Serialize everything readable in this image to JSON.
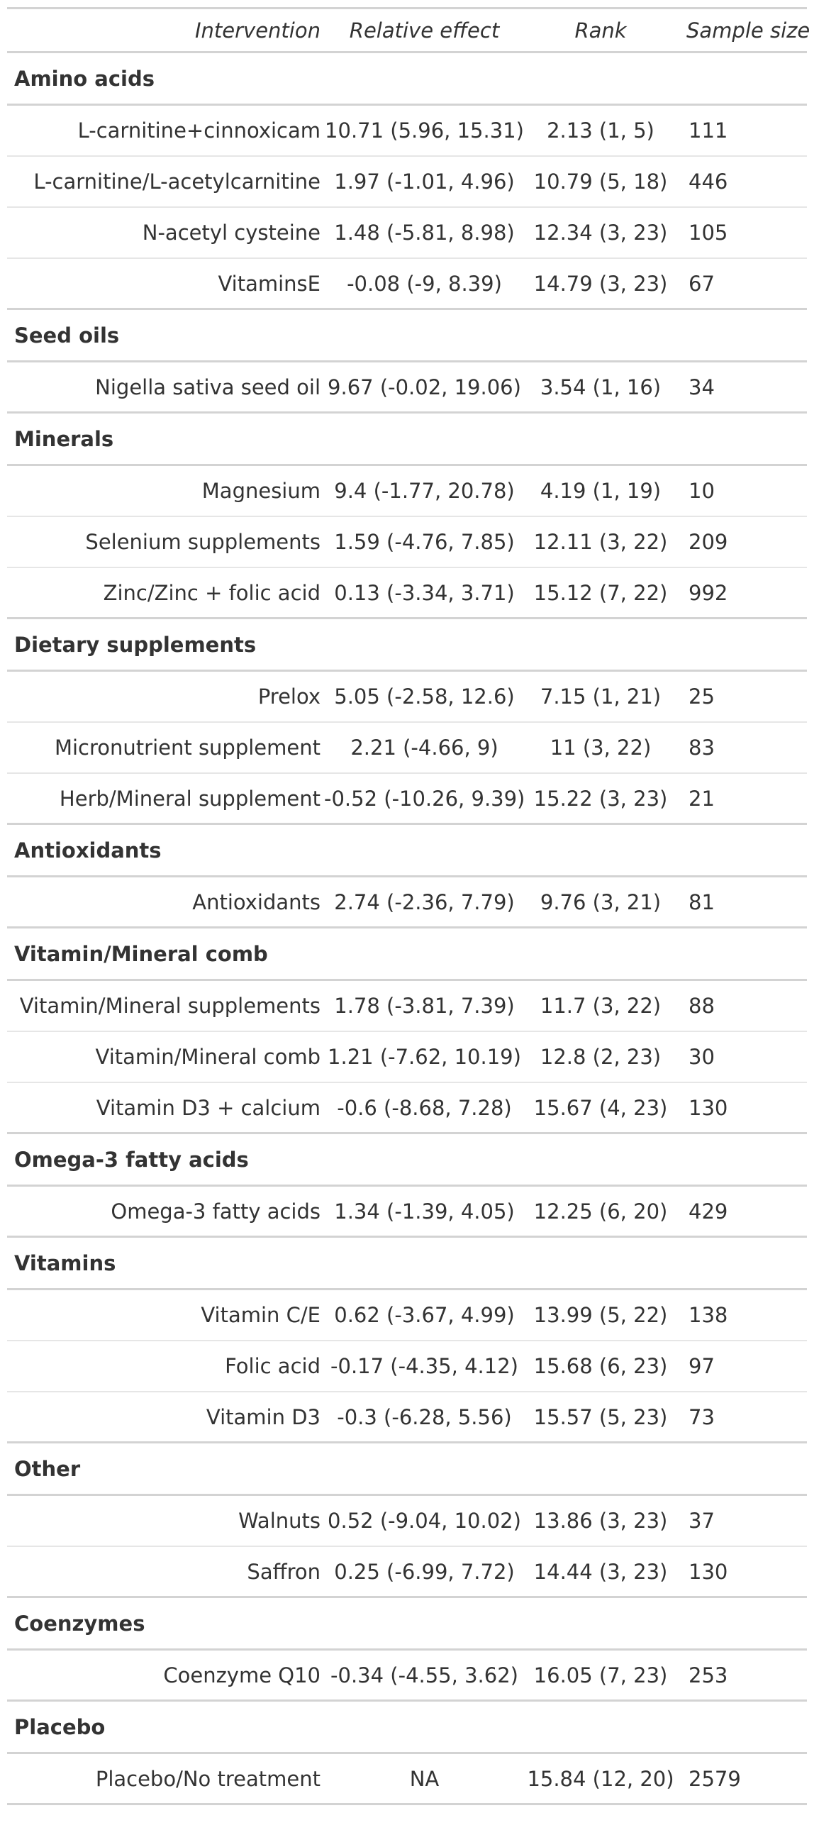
{
  "header": {
    "intervention": "Intervention",
    "relative_effect": "Relative effect",
    "rank": "Rank",
    "sample_size": "Sample size"
  },
  "groups": [
    {
      "name": "Amino acids",
      "rows": [
        {
          "intervention": "L-carnitine+cinnoxicam",
          "effect": "10.71 (5.96, 15.31)",
          "rank": "2.13 (1, 5)",
          "n": "111"
        },
        {
          "intervention": "L-carnitine/L-acetylcarnitine",
          "effect": "1.97 (-1.01, 4.96)",
          "rank": "10.79 (5, 18)",
          "n": "446"
        },
        {
          "intervention": "N-acetyl cysteine",
          "effect": "1.48 (-5.81, 8.98)",
          "rank": "12.34 (3, 23)",
          "n": "105"
        },
        {
          "intervention": "VitaminsE",
          "effect": "-0.08 (-9, 8.39)",
          "rank": "14.79 (3, 23)",
          "n": "67"
        }
      ]
    },
    {
      "name": "Seed oils",
      "rows": [
        {
          "intervention": "Nigella sativa seed oil",
          "effect": "9.67 (-0.02, 19.06)",
          "rank": "3.54 (1, 16)",
          "n": "34"
        }
      ]
    },
    {
      "name": "Minerals",
      "rows": [
        {
          "intervention": "Magnesium",
          "effect": "9.4 (-1.77, 20.78)",
          "rank": "4.19 (1, 19)",
          "n": "10"
        },
        {
          "intervention": "Selenium supplements",
          "effect": "1.59 (-4.76, 7.85)",
          "rank": "12.11 (3, 22)",
          "n": "209"
        },
        {
          "intervention": "Zinc/Zinc + folic acid",
          "effect": "0.13 (-3.34, 3.71)",
          "rank": "15.12 (7, 22)",
          "n": "992"
        }
      ]
    },
    {
      "name": "Dietary supplements",
      "rows": [
        {
          "intervention": "Prelox",
          "effect": "5.05 (-2.58, 12.6)",
          "rank": "7.15 (1, 21)",
          "n": "25"
        },
        {
          "intervention": "Micronutrient supplement",
          "effect": "2.21 (-4.66, 9)",
          "rank": "11 (3, 22)",
          "n": "83"
        },
        {
          "intervention": "Herb/Mineral supplement",
          "effect": "-0.52 (-10.26, 9.39)",
          "rank": "15.22 (3, 23)",
          "n": "21"
        }
      ]
    },
    {
      "name": "Antioxidants",
      "rows": [
        {
          "intervention": "Antioxidants",
          "effect": "2.74 (-2.36, 7.79)",
          "rank": "9.76 (3, 21)",
          "n": "81"
        }
      ]
    },
    {
      "name": "Vitamin/Mineral comb",
      "rows": [
        {
          "intervention": "Vitamin/Mineral supplements",
          "effect": "1.78 (-3.81, 7.39)",
          "rank": "11.7 (3, 22)",
          "n": "88"
        },
        {
          "intervention": "Vitamin/Mineral comb",
          "effect": "1.21 (-7.62, 10.19)",
          "rank": "12.8 (2, 23)",
          "n": "30"
        },
        {
          "intervention": "Vitamin D3 + calcium",
          "effect": "-0.6 (-8.68, 7.28)",
          "rank": "15.67 (4, 23)",
          "n": "130"
        }
      ]
    },
    {
      "name": "Omega-3 fatty acids",
      "rows": [
        {
          "intervention": "Omega-3 fatty acids",
          "effect": "1.34 (-1.39, 4.05)",
          "rank": "12.25 (6, 20)",
          "n": "429"
        }
      ]
    },
    {
      "name": "Vitamins",
      "rows": [
        {
          "intervention": "Vitamin C/E",
          "effect": "0.62 (-3.67, 4.99)",
          "rank": "13.99 (5, 22)",
          "n": "138"
        },
        {
          "intervention": "Folic acid",
          "effect": "-0.17 (-4.35, 4.12)",
          "rank": "15.68 (6, 23)",
          "n": "97"
        },
        {
          "intervention": "Vitamin D3",
          "effect": "-0.3 (-6.28, 5.56)",
          "rank": "15.57 (5, 23)",
          "n": "73"
        }
      ]
    },
    {
      "name": "Other",
      "rows": [
        {
          "intervention": "Walnuts",
          "effect": "0.52 (-9.04, 10.02)",
          "rank": "13.86 (3, 23)",
          "n": "37"
        },
        {
          "intervention": "Saffron",
          "effect": "0.25 (-6.99, 7.72)",
          "rank": "14.44 (3, 23)",
          "n": "130"
        }
      ]
    },
    {
      "name": "Coenzymes",
      "rows": [
        {
          "intervention": "Coenzyme Q10",
          "effect": "-0.34 (-4.55, 3.62)",
          "rank": "16.05 (7, 23)",
          "n": "253"
        }
      ]
    },
    {
      "name": "Placebo",
      "rows": [
        {
          "intervention": "Placebo/No treatment",
          "effect": "NA",
          "rank": "15.84 (12, 20)",
          "n": "2579"
        }
      ]
    }
  ]
}
